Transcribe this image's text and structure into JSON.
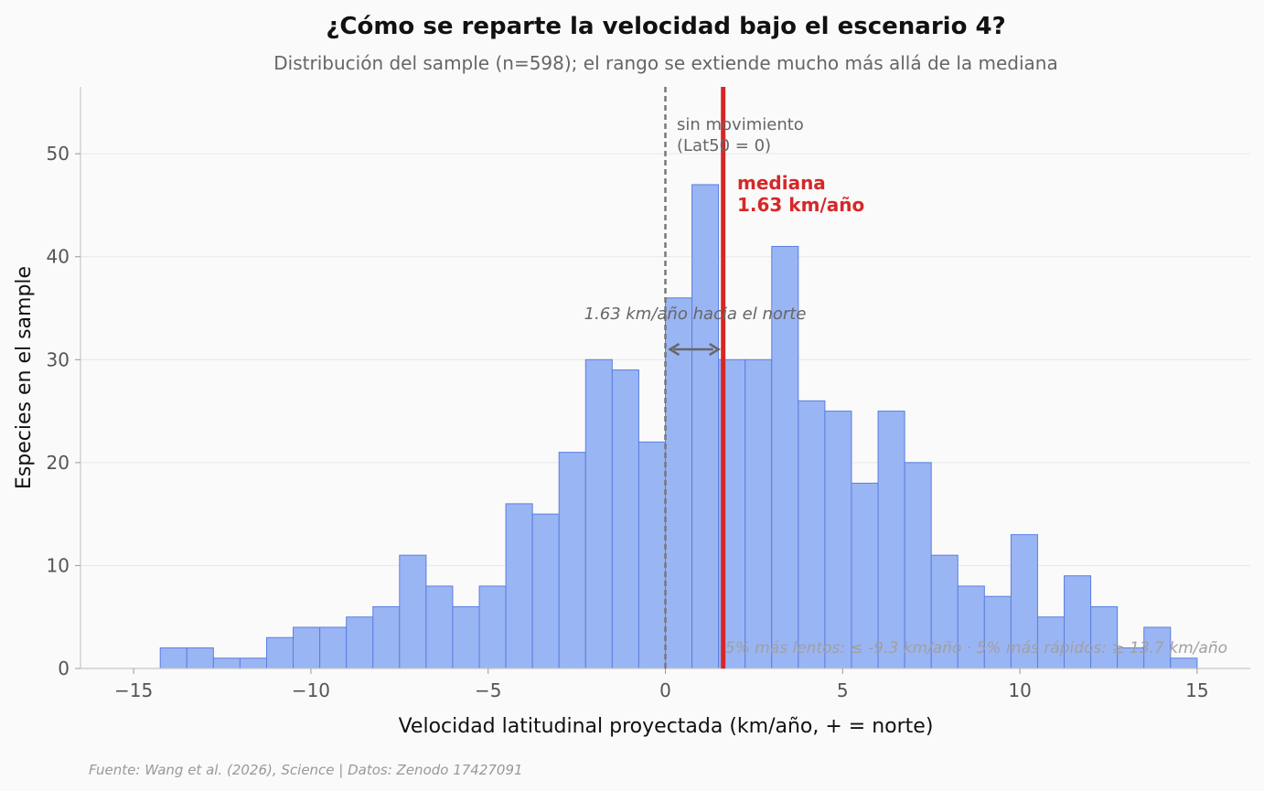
{
  "chart_data": {
    "type": "histogram",
    "title": "¿Cómo se reparte la velocidad bajo el escenario 4?",
    "subtitle": "Distribución del sample (n=598); el rango se extiende mucho más allá de la mediana",
    "xlabel": "Velocidad latitudinal proyectada (km/año, + = norte)",
    "ylabel": "Especies en el sample",
    "xlim": [
      -16.5,
      16.5
    ],
    "ylim": [
      0,
      56.5
    ],
    "xticks": [
      -15,
      -10,
      -5,
      0,
      5,
      10,
      15
    ],
    "xtick_labels": [
      "−15",
      "−10",
      "−5",
      "0",
      "5",
      "10",
      "15"
    ],
    "yticks": [
      0,
      10,
      20,
      30,
      40,
      50
    ],
    "ytick_labels": [
      "0",
      "10",
      "20",
      "30",
      "40",
      "50"
    ],
    "grid": "horizontal",
    "bin_start": -14.25,
    "bin_width": 0.75,
    "counts": [
      2,
      2,
      1,
      1,
      3,
      4,
      4,
      5,
      6,
      11,
      8,
      6,
      8,
      16,
      15,
      21,
      30,
      29,
      22,
      36,
      47,
      30,
      30,
      41,
      26,
      25,
      18,
      25,
      20,
      11,
      8,
      7,
      13,
      5,
      9,
      6,
      2,
      4,
      1
    ],
    "colors": {
      "bar_fill": "#9ab5f3",
      "bar_edge": "#5a7fe0",
      "median": "#d62728",
      "zero_line": "#777777"
    },
    "zero_line": {
      "x": 0,
      "label_line1": "sin movimiento",
      "label_line2": "(Lat50 = 0)"
    },
    "median": {
      "x": 1.63,
      "label_line1": "mediana",
      "label_line2": "1.63 km/año"
    },
    "arrow": {
      "x_from": 0,
      "x_to": 1.63,
      "y": 31,
      "label": "1.63 km/año hacia el norte"
    },
    "tails_note": "5% más lentos: ≤ -9.3 km/año  ·  5% más rápidos: ≥ 13.7 km/año",
    "source": "Fuente: Wang et al. (2026), Science | Datos: Zenodo 17427091"
  }
}
